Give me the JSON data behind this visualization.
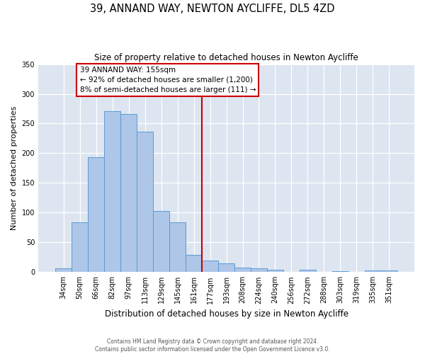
{
  "title": "39, ANNAND WAY, NEWTON AYCLIFFE, DL5 4ZD",
  "subtitle": "Size of property relative to detached houses in Newton Aycliffe",
  "xlabel": "Distribution of detached houses by size in Newton Aycliffe",
  "ylabel": "Number of detached properties",
  "bar_labels": [
    "34sqm",
    "50sqm",
    "66sqm",
    "82sqm",
    "97sqm",
    "113sqm",
    "129sqm",
    "145sqm",
    "161sqm",
    "177sqm",
    "193sqm",
    "208sqm",
    "224sqm",
    "240sqm",
    "256sqm",
    "272sqm",
    "288sqm",
    "303sqm",
    "319sqm",
    "335sqm",
    "351sqm"
  ],
  "bar_values": [
    6,
    84,
    193,
    271,
    266,
    236,
    103,
    84,
    29,
    19,
    15,
    7,
    6,
    4,
    0,
    4,
    0,
    2,
    0,
    3,
    3
  ],
  "bar_color": "#aec6e8",
  "bar_edge_color": "#5b9bd5",
  "background_color": "#dde5f0",
  "ylim": [
    0,
    350
  ],
  "yticks": [
    0,
    50,
    100,
    150,
    200,
    250,
    300,
    350
  ],
  "vline_x": 8,
  "vline_color": "#cc0000",
  "annotation_title": "39 ANNAND WAY: 155sqm",
  "annotation_line1": "← 92% of detached houses are smaller (1,200)",
  "annotation_line2": "8% of semi-detached houses are larger (111) →",
  "annotation_box_color": "#cc0000",
  "footer1": "Contains HM Land Registry data © Crown copyright and database right 2024.",
  "footer2": "Contains public sector information licensed under the Open Government Licence v3.0."
}
